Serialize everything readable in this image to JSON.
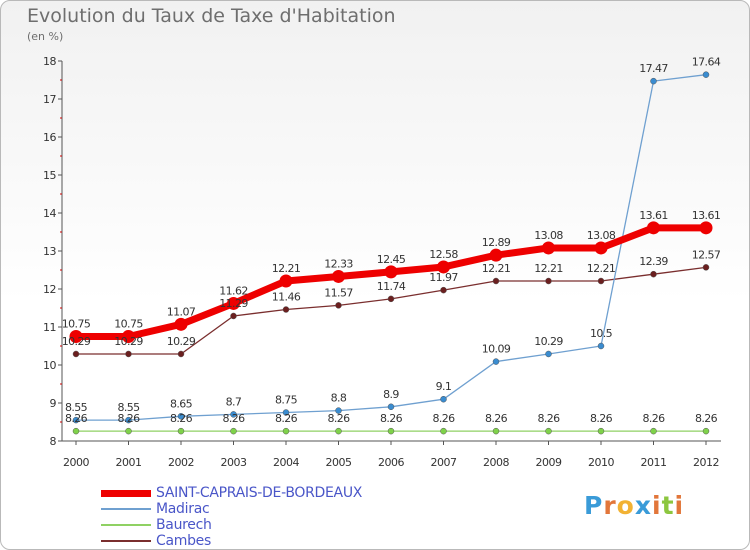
{
  "header": {
    "title": "Evolution du Taux de Taxe d'Habitation",
    "subtitle": "(en %)"
  },
  "logo": {
    "letters": [
      "P",
      "r",
      "o",
      "x",
      "i",
      "t",
      "i"
    ],
    "colors": [
      "#3a9bd8",
      "#e2763a",
      "#f2b233",
      "#3a9bd8",
      "#e2763a",
      "#8cc63f",
      "#e2763a"
    ]
  },
  "chart_data": {
    "type": "line",
    "x": [
      "2000",
      "2001",
      "2002",
      "2003",
      "2004",
      "2005",
      "2006",
      "2007",
      "2008",
      "2009",
      "2010",
      "2011",
      "2012"
    ],
    "ylim": [
      8,
      18
    ],
    "yticks": [
      "8",
      "9",
      "10",
      "11",
      "12",
      "13",
      "14",
      "15",
      "16",
      "17",
      "18"
    ],
    "grid": false,
    "legend_position": "bottom-left",
    "series": [
      {
        "name": "SAINT-CAPRAIS-DE-BORDEAUX",
        "color": "#ee0000",
        "values": [
          10.75,
          10.75,
          11.07,
          11.62,
          12.21,
          12.33,
          12.45,
          12.58,
          12.89,
          13.08,
          13.08,
          13.61,
          13.61
        ],
        "labels": [
          "10.75",
          "10.75",
          "11.07",
          "11.62",
          "12.21",
          "12.33",
          "12.45",
          "12.58",
          "12.89",
          "13.08",
          "13.08",
          "13.61",
          "13.61"
        ]
      },
      {
        "name": "Madirac",
        "color": "#6fa0d0",
        "values": [
          8.55,
          8.55,
          8.65,
          8.7,
          8.75,
          8.8,
          8.9,
          9.1,
          10.09,
          10.29,
          10.5,
          17.47,
          17.64
        ],
        "labels": [
          "8.55",
          "8.55",
          "8.65",
          "8.7",
          "8.75",
          "8.8",
          "8.9",
          "9.1",
          "10.09",
          "10.29",
          "10.5",
          "17.47",
          "17.64"
        ]
      },
      {
        "name": "Baurech",
        "color": "#8fd163",
        "values": [
          8.26,
          8.26,
          8.26,
          8.26,
          8.26,
          8.26,
          8.26,
          8.26,
          8.26,
          8.26,
          8.26,
          8.26,
          8.26
        ],
        "labels": [
          "8.26",
          "8.26",
          "8.26",
          "8.26",
          "8.26",
          "8.26",
          "8.26",
          "8.26",
          "8.26",
          "8.26",
          "8.26",
          "8.26",
          "8.26"
        ]
      },
      {
        "name": "Cambes",
        "color": "#7a2e2e",
        "values": [
          10.29,
          10.29,
          10.29,
          11.29,
          11.46,
          11.57,
          11.74,
          11.97,
          12.21,
          12.21,
          12.21,
          12.39,
          12.57
        ],
        "labels": [
          "10.29",
          "10.29",
          "10.29",
          "11.29",
          "11.46",
          "11.57",
          "11.74",
          "11.97",
          "12.21",
          "12.21",
          "12.21",
          "12.39",
          "12.57"
        ]
      }
    ]
  }
}
